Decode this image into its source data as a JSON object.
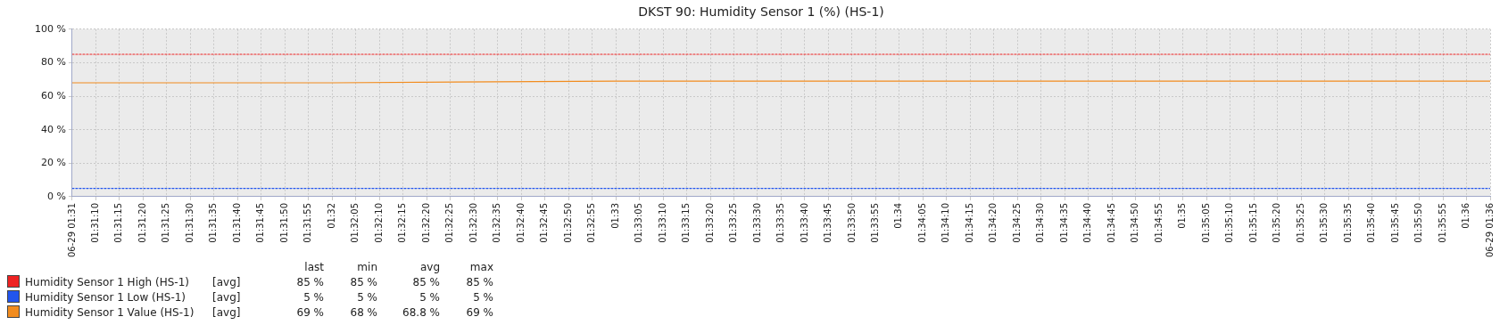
{
  "chart_data": {
    "type": "line",
    "title": "DKST 90: Humidity Sensor 1 (%) (HS-1)",
    "xlim": [
      1.518056,
      1.601389
    ],
    "xticks": [
      {
        "value": 1.518056,
        "label": "06-29 01:31"
      },
      {
        "value": 1.519444,
        "label": "01:31:10"
      },
      {
        "value": 1.520833,
        "label": "01:31:15"
      },
      {
        "value": 1.522222,
        "label": "01:31:20"
      },
      {
        "value": 1.523611,
        "label": "01:31:25"
      },
      {
        "value": 1.525,
        "label": "01:31:30"
      },
      {
        "value": 1.526389,
        "label": "01:31:35"
      },
      {
        "value": 1.527778,
        "label": "01:31:40"
      },
      {
        "value": 1.529167,
        "label": "01:31:45"
      },
      {
        "value": 1.530556,
        "label": "01:31:50"
      },
      {
        "value": 1.531944,
        "label": "01:31:55"
      },
      {
        "value": 1.533333,
        "label": "01:32"
      },
      {
        "value": 1.534722,
        "label": "01:32:05"
      },
      {
        "value": 1.536111,
        "label": "01:32:10"
      },
      {
        "value": 1.5375,
        "label": "01:32:15"
      },
      {
        "value": 1.538889,
        "label": "01:32:20"
      },
      {
        "value": 1.540278,
        "label": "01:32:25"
      },
      {
        "value": 1.541667,
        "label": "01:32:30"
      },
      {
        "value": 1.543056,
        "label": "01:32:35"
      },
      {
        "value": 1.544444,
        "label": "01:32:40"
      },
      {
        "value": 1.545833,
        "label": "01:32:45"
      },
      {
        "value": 1.547222,
        "label": "01:32:50"
      },
      {
        "value": 1.548611,
        "label": "01:32:55"
      },
      {
        "value": 1.55,
        "label": "01:33"
      },
      {
        "value": 1.551389,
        "label": "01:33:05"
      },
      {
        "value": 1.552778,
        "label": "01:33:10"
      },
      {
        "value": 1.554167,
        "label": "01:33:15"
      },
      {
        "value": 1.555556,
        "label": "01:33:20"
      },
      {
        "value": 1.556944,
        "label": "01:33:25"
      },
      {
        "value": 1.558333,
        "label": "01:33:30"
      },
      {
        "value": 1.559722,
        "label": "01:33:35"
      },
      {
        "value": 1.561111,
        "label": "01:33:40"
      },
      {
        "value": 1.5625,
        "label": "01:33:45"
      },
      {
        "value": 1.563889,
        "label": "01:33:50"
      },
      {
        "value": 1.565278,
        "label": "01:33:55"
      },
      {
        "value": 1.566667,
        "label": "01:34"
      },
      {
        "value": 1.568056,
        "label": "01:34:05"
      },
      {
        "value": 1.569444,
        "label": "01:34:10"
      },
      {
        "value": 1.570833,
        "label": "01:34:15"
      },
      {
        "value": 1.572222,
        "label": "01:34:20"
      },
      {
        "value": 1.573611,
        "label": "01:34:25"
      },
      {
        "value": 1.575,
        "label": "01:34:30"
      },
      {
        "value": 1.576389,
        "label": "01:34:35"
      },
      {
        "value": 1.577778,
        "label": "01:34:40"
      },
      {
        "value": 1.579167,
        "label": "01:34:45"
      },
      {
        "value": 1.580556,
        "label": "01:34:50"
      },
      {
        "value": 1.581944,
        "label": "01:34:55"
      },
      {
        "value": 1.583333,
        "label": "01:35"
      },
      {
        "value": 1.584722,
        "label": "01:35:05"
      },
      {
        "value": 1.586111,
        "label": "01:35:10"
      },
      {
        "value": 1.5875,
        "label": "01:35:15"
      },
      {
        "value": 1.588889,
        "label": "01:35:20"
      },
      {
        "value": 1.590278,
        "label": "01:35:25"
      },
      {
        "value": 1.591667,
        "label": "01:35:30"
      },
      {
        "value": 1.593056,
        "label": "01:35:35"
      },
      {
        "value": 1.594444,
        "label": "01:35:40"
      },
      {
        "value": 1.595833,
        "label": "01:35:45"
      },
      {
        "value": 1.597222,
        "label": "01:35:50"
      },
      {
        "value": 1.598611,
        "label": "01:35:55"
      },
      {
        "value": 1.6,
        "label": "01:36"
      },
      {
        "value": 1.601389,
        "label": "06-29 01:36"
      }
    ],
    "ylim": [
      0,
      100
    ],
    "yticks": [
      {
        "value": 0,
        "label": "0 %"
      },
      {
        "value": 20,
        "label": "20 %"
      },
      {
        "value": 40,
        "label": "40 %"
      },
      {
        "value": 60,
        "label": "60 %"
      },
      {
        "value": 80,
        "label": "80 %"
      },
      {
        "value": 100,
        "label": "100 %"
      }
    ],
    "grid": true,
    "legend": "bottom",
    "marker": "none",
    "series": [
      {
        "name": "Humidity Sensor 1 High (HS-1)",
        "color": "#ee2222",
        "line_style": "dotted",
        "x": [
          1.518056,
          1.601389
        ],
        "values": [
          85,
          85
        ]
      },
      {
        "name": "Humidity Sensor 1 Low (HS-1)",
        "color": "#2255ee",
        "line_style": "dotted",
        "x": [
          1.518056,
          1.601389
        ],
        "values": [
          5,
          5
        ]
      },
      {
        "name": "Humidity Sensor 1 Value (HS-1)",
        "color": "#f28c1e",
        "line_style": "solid",
        "x": [
          1.518056,
          1.533333,
          1.55,
          1.601389
        ],
        "values": [
          68,
          68,
          69,
          69
        ]
      }
    ],
    "annotations": [
      "last",
      "min",
      "avg",
      "max",
      "[avg]",
      "85 %",
      "85 %",
      "85 %",
      "85 %",
      "[avg]",
      "5 %",
      "5 %",
      "5 %",
      "5 %",
      "[avg]",
      "69 %",
      "68 %",
      "68.8 %",
      "69 %"
    ]
  }
}
